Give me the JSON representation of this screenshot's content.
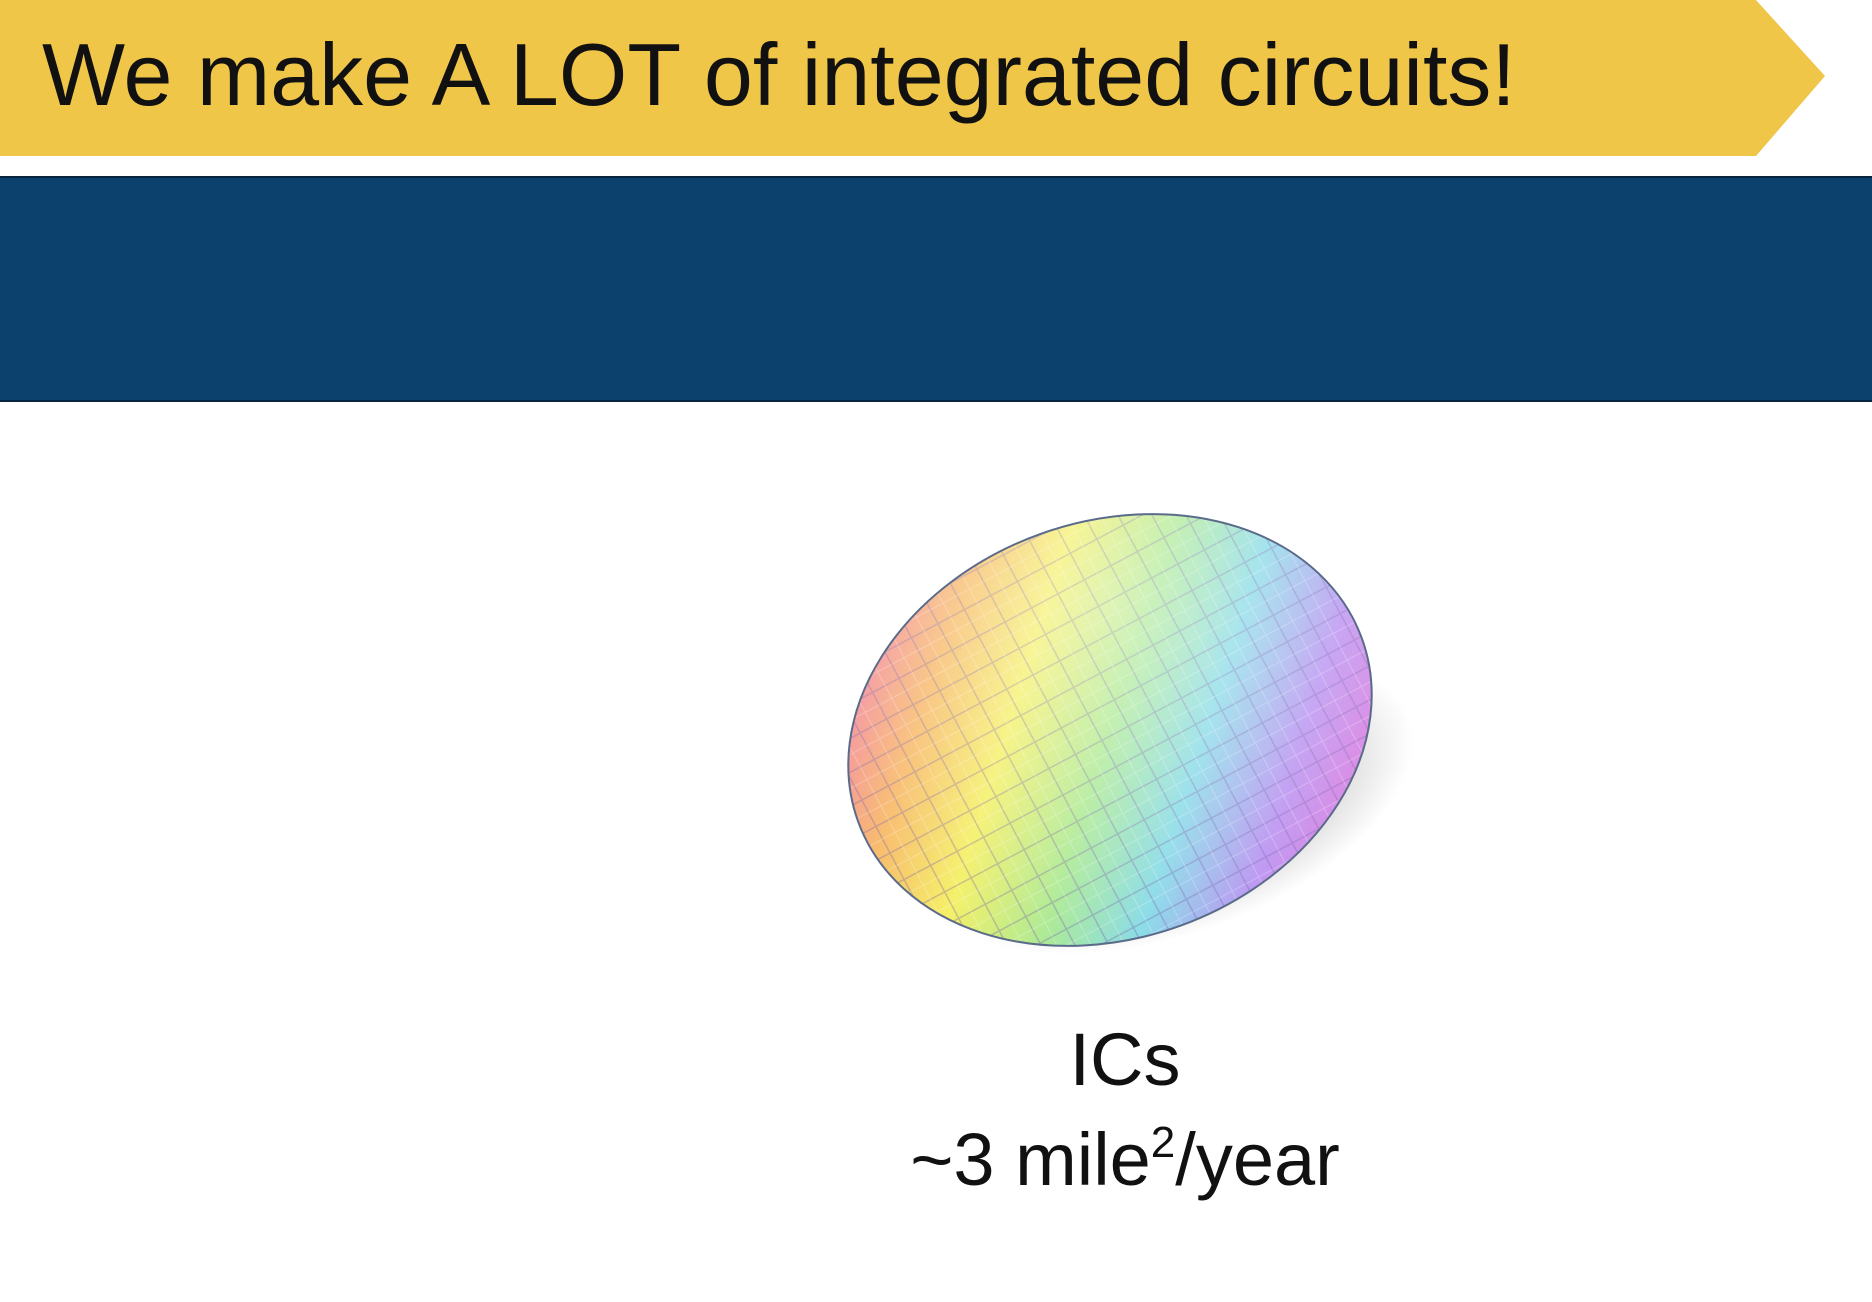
{
  "slide": {
    "title": "We make A LOT of integrated circuits!",
    "caption": {
      "line1": "ICs",
      "line2_prefix": "~3 mile",
      "line2_superscript": "2",
      "line2_suffix": "/year"
    }
  },
  "colors": {
    "banner": "#f0c649",
    "band": "#0c416d",
    "text": "#111111"
  },
  "icons": {
    "wafer": "silicon-wafer-icon"
  }
}
